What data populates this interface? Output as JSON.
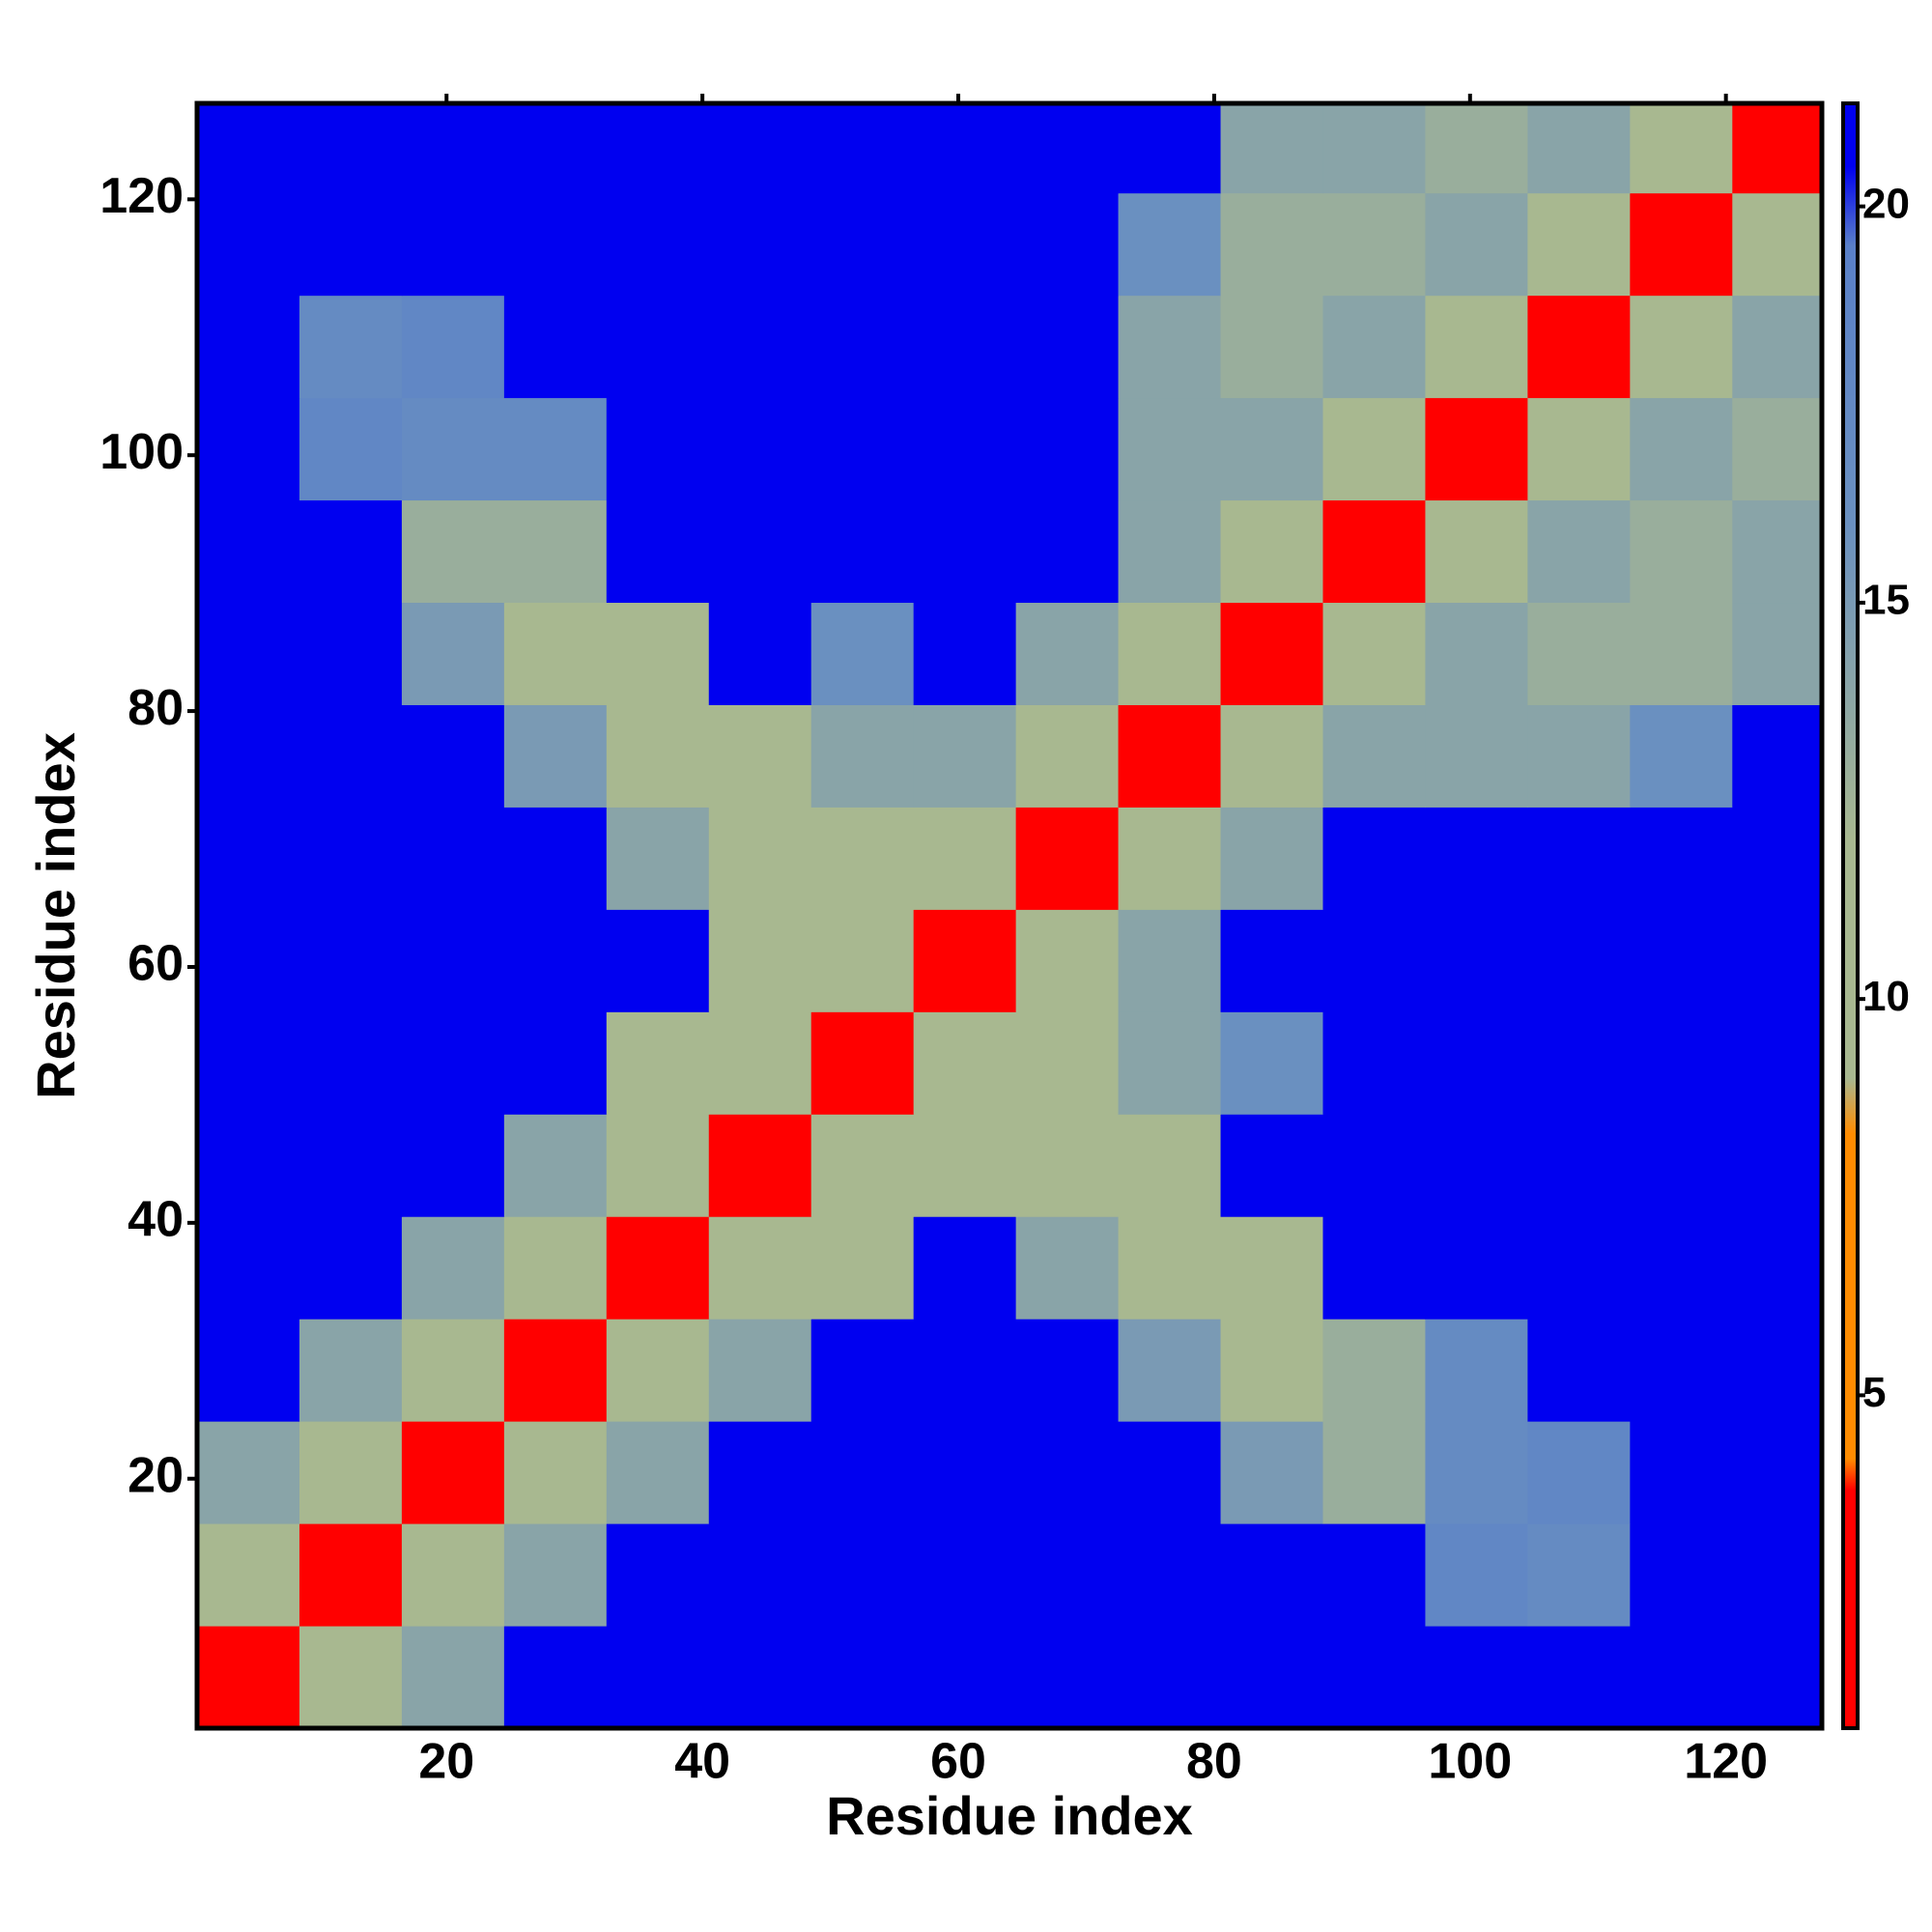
{
  "chart_data": {
    "type": "heatmap",
    "xlabel": "Residue index",
    "ylabel": "Residue index",
    "xlim": [
      0.5,
      127.5
    ],
    "ylim": [
      0.5,
      127.5
    ],
    "xticks": [
      20,
      40,
      60,
      80,
      100,
      120
    ],
    "yticks": [
      20,
      40,
      60,
      80,
      100,
      120
    ],
    "xbins": [
      0.5,
      8.5,
      16.5,
      24.5,
      32.5,
      40.5,
      48.5,
      56.5,
      64.5,
      72.5,
      80.5,
      88.5,
      96.5,
      104.5,
      112.5,
      120.5,
      127.5
    ],
    "ybins": [
      0.5,
      8.5,
      16.5,
      24.5,
      32.5,
      40.5,
      48.5,
      56.5,
      64.5,
      72.5,
      80.5,
      88.5,
      96.5,
      104.5,
      112.5,
      120.5,
      127.5
    ],
    "values": [
      [
        3,
        9,
        14,
        21,
        21,
        21,
        21,
        21,
        21,
        21,
        21,
        21,
        21,
        21,
        21,
        21
      ],
      [
        9,
        3,
        9,
        14,
        21,
        21,
        21,
        21,
        21,
        21,
        21,
        21,
        18,
        17,
        21,
        21
      ],
      [
        14,
        9,
        3,
        9,
        14,
        21,
        21,
        21,
        21,
        21,
        15,
        13,
        17,
        18,
        21,
        21
      ],
      [
        21,
        14,
        9,
        3,
        9,
        14,
        21,
        21,
        21,
        15,
        12,
        13,
        17,
        21,
        21,
        21
      ],
      [
        21,
        21,
        14,
        9,
        3,
        9,
        11,
        21,
        14,
        12,
        12,
        21,
        21,
        21,
        21,
        21
      ],
      [
        21,
        21,
        21,
        14,
        9,
        3,
        9,
        11,
        11,
        12,
        21,
        21,
        21,
        21,
        21,
        21
      ],
      [
        21,
        21,
        21,
        21,
        11,
        9,
        3,
        9,
        11,
        14,
        16,
        21,
        21,
        21,
        21,
        21
      ],
      [
        21,
        21,
        21,
        21,
        21,
        11,
        9,
        3,
        9,
        14,
        21,
        21,
        21,
        21,
        21,
        21
      ],
      [
        21,
        21,
        21,
        21,
        14,
        11,
        11,
        9,
        3,
        9,
        14,
        21,
        21,
        21,
        21,
        21
      ],
      [
        21,
        21,
        21,
        15,
        12,
        12,
        14,
        14,
        9,
        3,
        9,
        14,
        14,
        14,
        16,
        21
      ],
      [
        21,
        21,
        15,
        12,
        12,
        21,
        16,
        21,
        14,
        9,
        3,
        9,
        14,
        13,
        13,
        14
      ],
      [
        21,
        21,
        13,
        13,
        21,
        21,
        21,
        21,
        21,
        14,
        9,
        3,
        9,
        14,
        13,
        14
      ],
      [
        21,
        18,
        17,
        17,
        21,
        21,
        21,
        21,
        21,
        14,
        14,
        9,
        3,
        9,
        14,
        13
      ],
      [
        21,
        17,
        18,
        21,
        21,
        21,
        21,
        21,
        21,
        14,
        13,
        14,
        9,
        3,
        9,
        14
      ],
      [
        21,
        21,
        21,
        21,
        21,
        21,
        21,
        21,
        21,
        16,
        13,
        13,
        14,
        9,
        3,
        9
      ],
      [
        21,
        21,
        21,
        21,
        21,
        21,
        21,
        21,
        21,
        21,
        14,
        14,
        13,
        14,
        9,
        3
      ]
    ],
    "colorbar_lim": [
      0.8,
      21.3
    ],
    "colorbar_ticks": [
      5,
      10,
      15,
      20
    ],
    "colorscale": [
      [
        0.8,
        "#ff0000"
      ],
      [
        3.8,
        "#ff0000"
      ],
      [
        4.2,
        "#ff8c00"
      ],
      [
        8.3,
        "#ff8c00"
      ],
      [
        9,
        "#a8b890"
      ],
      [
        12,
        "#a8b890"
      ],
      [
        16,
        "#6a90c0"
      ],
      [
        19.5,
        "#5a80c8"
      ],
      [
        20.5,
        "#0000f0"
      ],
      [
        21.3,
        "#0000f0"
      ]
    ]
  }
}
